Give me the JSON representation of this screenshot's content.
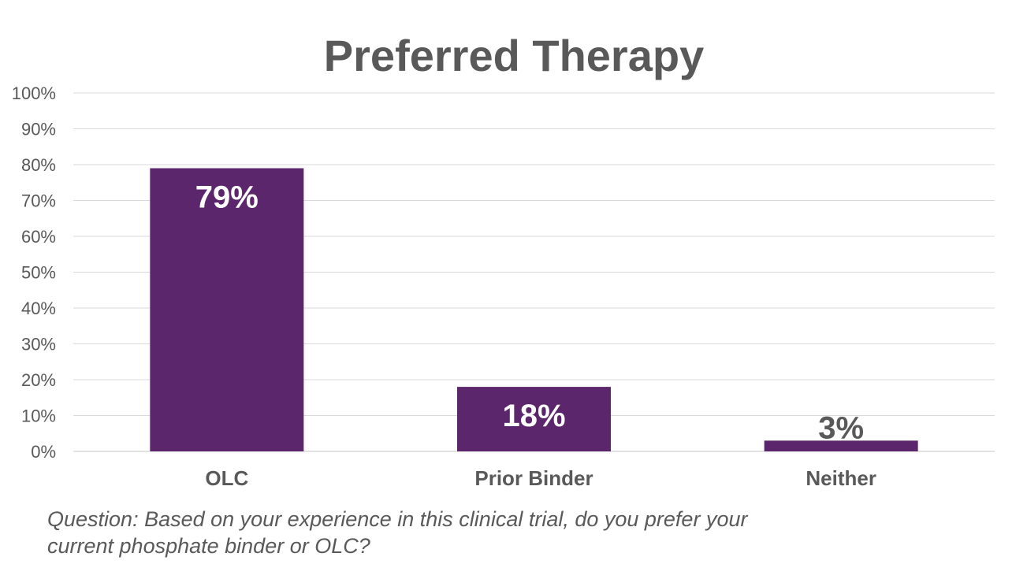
{
  "chart_data": {
    "type": "bar",
    "title": "Preferred Therapy",
    "categories": [
      "OLC",
      "Prior Binder",
      "Neither"
    ],
    "values": [
      79,
      18,
      3
    ],
    "data_labels": [
      "79%",
      "18%",
      "3%"
    ],
    "ylim": [
      0,
      100
    ],
    "yticks": [
      "0%",
      "10%",
      "20%",
      "30%",
      "40%",
      "50%",
      "60%",
      "70%",
      "80%",
      "90%",
      "100%"
    ],
    "xlabel": "",
    "ylabel": "",
    "grid": true,
    "bar_color": "#5B266B",
    "gridline_color": "#D9D9D9",
    "text_color": "#595959",
    "inside_label_color": "#FFFFFF"
  },
  "footnote": {
    "line1": "Question: Based on your experience in this clinical trial, do you prefer your",
    "line2": "current phosphate binder or OLC?"
  }
}
